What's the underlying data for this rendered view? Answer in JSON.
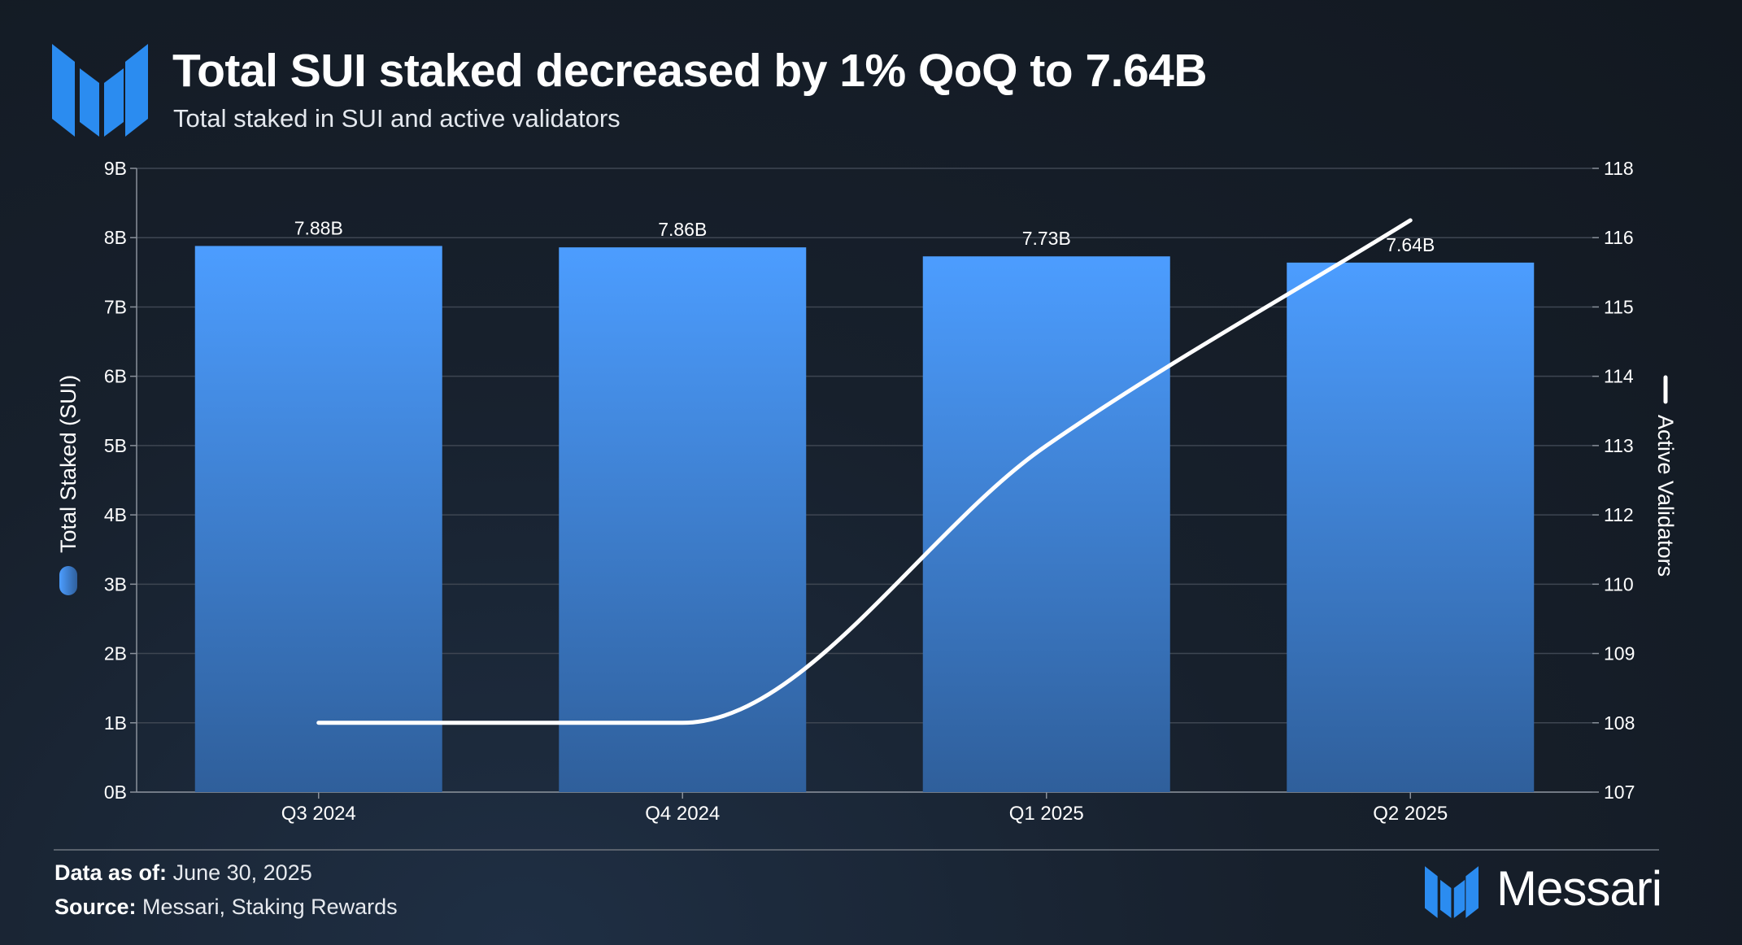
{
  "header": {
    "title": "Total SUI staked decreased by 1% QoQ to 7.64B",
    "subtitle": "Total staked in SUI and active validators",
    "logo_icon": "messari-logo-icon"
  },
  "chart_data": {
    "type": "bar",
    "categories": [
      "Q3 2024",
      "Q4 2024",
      "Q1 2025",
      "Q2 2025"
    ],
    "series": [
      {
        "name": "Total Staked (SUI)",
        "type": "bar",
        "axis": "left",
        "values": [
          7.88,
          7.86,
          7.73,
          7.64
        ],
        "data_labels": [
          "7.88B",
          "7.86B",
          "7.73B",
          "7.64B"
        ],
        "color": "#4c9dff"
      },
      {
        "name": "Active Validators",
        "type": "line",
        "axis": "right",
        "values": [
          108,
          108,
          113,
          116.5
        ],
        "color": "#ffffff"
      }
    ],
    "left_axis": {
      "label": "Total Staked (SUI)",
      "ticks": [
        "0B",
        "1B",
        "2B",
        "3B",
        "4B",
        "5B",
        "6B",
        "7B",
        "8B",
        "9B"
      ],
      "ylim": [
        0,
        9
      ]
    },
    "right_axis": {
      "label": "Active Validators",
      "ticks": [
        "107",
        "108",
        "109",
        "110",
        "112",
        "113",
        "114",
        "115",
        "116",
        "118"
      ]
    },
    "grid": true
  },
  "footer": {
    "date_label": "Data as of:",
    "date_value": "June 30, 2025",
    "source_label": "Source:",
    "source_value": "Messari, Staking Rewards",
    "brand": "Messari",
    "brand_icon": "messari-logo-icon"
  }
}
